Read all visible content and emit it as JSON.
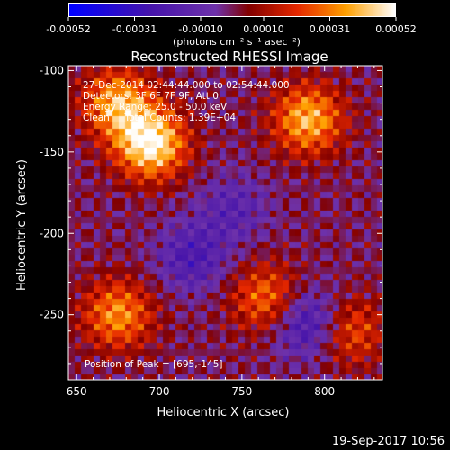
{
  "chart_data": {
    "type": "heatmap",
    "title": "Reconstructed RHESSI Image",
    "xlabel": "Heliocentric X (arcsec)",
    "ylabel": "Heliocentric Y (arcsec)",
    "xlim": [
      645,
      835
    ],
    "ylim": [
      -290,
      -97
    ],
    "x_ticks": [
      "650",
      "700",
      "750",
      "800"
    ],
    "x_tick_values": [
      650,
      700,
      750,
      800
    ],
    "y_ticks": [
      "-100",
      "-150",
      "-200",
      "-250"
    ],
    "y_tick_values": [
      -100,
      -150,
      -200,
      -250
    ],
    "colorbar": {
      "ticks": [
        "-0.00052",
        "-0.00031",
        "-0.00010",
        "0.00010",
        "0.00031",
        "0.00052"
      ],
      "tick_values": [
        -0.00052,
        -0.00031,
        -0.0001,
        0.0001,
        0.00031,
        0.00052
      ],
      "range": [
        -0.00052,
        0.00052
      ],
      "unit_label": "(photons cm⁻² s⁻¹ asec⁻²)"
    },
    "annotations": {
      "time": "27-Dec-2014 02:44:44.000 to 02:54:44.000",
      "detectors": "Detectors: 3F 6F 7F 9F, Att 0",
      "energy": "Energy Range: 25.0 - 50.0 keV",
      "clean": "Clean     Total Counts: 1.39E+04",
      "peak": "Position of Peak = [695,-145]"
    },
    "sources": [
      {
        "x": 695,
        "y": -145,
        "amplitude": 0.00052
      },
      {
        "x": 675,
        "y": -120,
        "amplitude": 0.00038
      },
      {
        "x": 790,
        "y": -130,
        "amplitude": 0.0004
      },
      {
        "x": 675,
        "y": -250,
        "amplitude": 0.00034
      },
      {
        "x": 765,
        "y": -240,
        "amplitude": 0.0003
      },
      {
        "x": 815,
        "y": -260,
        "amplitude": 0.00026
      },
      {
        "x": 790,
        "y": -255,
        "amplitude": -0.0003
      },
      {
        "x": 720,
        "y": -215,
        "amplitude": -0.00022
      },
      {
        "x": 745,
        "y": -185,
        "amplitude": -0.00016
      }
    ]
  },
  "footer": {
    "timestamp": "19-Sep-2017 10:56"
  }
}
